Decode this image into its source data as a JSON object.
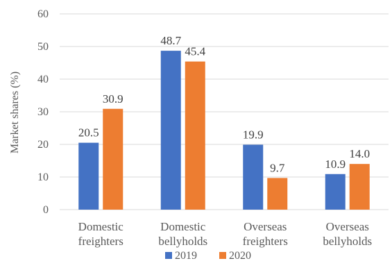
{
  "chart_data": {
    "type": "bar",
    "categories": [
      [
        "Domestic",
        "freighters"
      ],
      [
        "Domestic",
        "bellyholds"
      ],
      [
        "Overseas",
        "freighters"
      ],
      [
        "Overseas",
        "bellyholds"
      ]
    ],
    "series": [
      {
        "name": "2019",
        "color": "#4472C4",
        "values": [
          20.5,
          48.7,
          19.9,
          10.9
        ],
        "labels": [
          "20.5",
          "48.7",
          "19.9",
          "10.9"
        ]
      },
      {
        "name": "2020",
        "color": "#ED7D31",
        "values": [
          30.9,
          45.4,
          9.7,
          14.0
        ],
        "labels": [
          "30.9",
          "45.4",
          "9.7",
          "14.0"
        ]
      }
    ],
    "ylabel": "Market shares (%)",
    "ylim": [
      0,
      60
    ],
    "yticks": [
      0,
      10,
      20,
      30,
      40,
      50,
      60
    ],
    "grid": true,
    "legend_position": "bottom"
  }
}
